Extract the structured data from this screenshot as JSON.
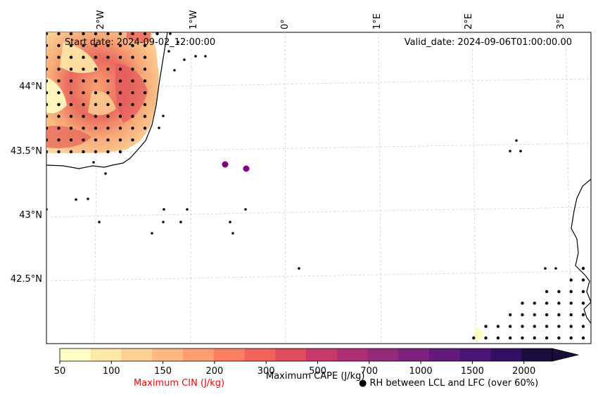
{
  "map": {
    "start_date": "Start date: 2024-09-02_12:00:00",
    "valid_date": "Valid_date: 2024-09-06T01:00:00.00",
    "lon_labels": [
      "2°W",
      "1°W",
      "0°",
      "1°E",
      "2°E",
      "3°E"
    ],
    "lat_labels": [
      "44°N",
      "43.5°N",
      "43°N",
      "42.5°N"
    ]
  },
  "colorbar": {
    "ticks": [
      "50",
      "100",
      "150",
      "200",
      "300",
      "500",
      "700",
      "1000",
      "1500",
      "2000"
    ],
    "colors": [
      "#fffdc4",
      "#fee8a8",
      "#fed193",
      "#feb881",
      "#fd9d71",
      "#f98062",
      "#ef6359",
      "#df4c5b",
      "#c7396a",
      "#af2f74",
      "#962879",
      "#7d217c",
      "#631a7b",
      "#4b1474",
      "#320f61",
      "#1a0d3e"
    ],
    "cin_label": "Maximum CIN (J/kg)",
    "cape_label": "Maximum CAPE (J/kg)",
    "rh_label": "● RH between LCL and LFC (over 60%)",
    "cin_color": "#ff0000"
  },
  "cape_points": {
    "color": "#800080"
  }
}
